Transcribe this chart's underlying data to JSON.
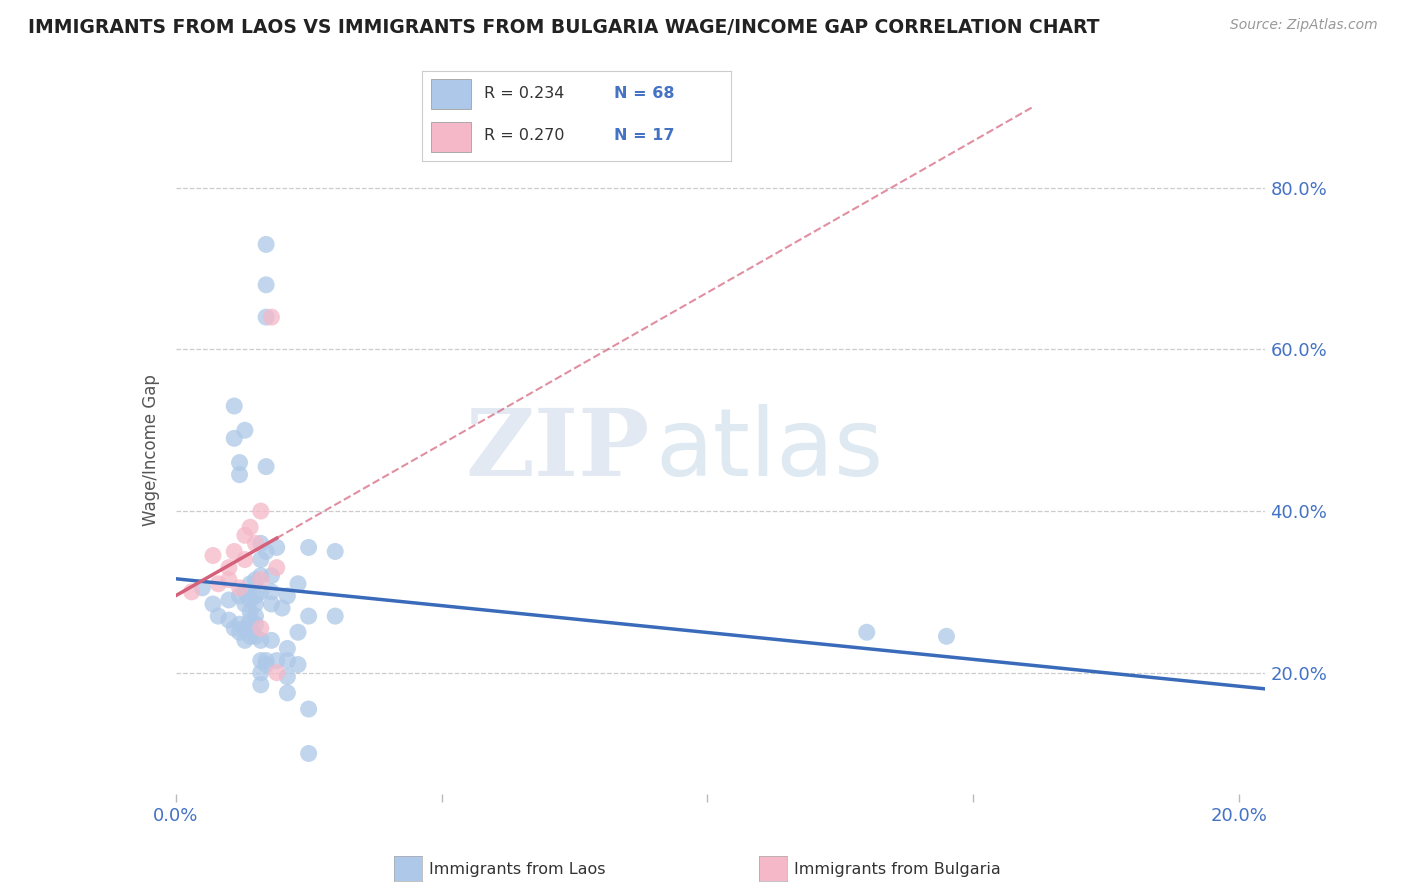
{
  "title": "IMMIGRANTS FROM LAOS VS IMMIGRANTS FROM BULGARIA WAGE/INCOME GAP CORRELATION CHART",
  "source": "Source: ZipAtlas.com",
  "ylabel": "Wage/Income Gap",
  "laos_R": 0.234,
  "laos_N": 68,
  "bulgaria_R": 0.27,
  "bulgaria_N": 17,
  "laos_color": "#adc8e8",
  "bulgaria_color": "#f5b8c8",
  "laos_line_color": "#3a6bba",
  "bulgaria_line_color": "#d4607a",
  "laos_points": [
    [
      0.005,
      0.305
    ],
    [
      0.007,
      0.285
    ],
    [
      0.008,
      0.27
    ],
    [
      0.01,
      0.29
    ],
    [
      0.01,
      0.265
    ],
    [
      0.011,
      0.53
    ],
    [
      0.011,
      0.49
    ],
    [
      0.011,
      0.255
    ],
    [
      0.012,
      0.295
    ],
    [
      0.012,
      0.46
    ],
    [
      0.012,
      0.445
    ],
    [
      0.012,
      0.26
    ],
    [
      0.012,
      0.25
    ],
    [
      0.013,
      0.3
    ],
    [
      0.013,
      0.285
    ],
    [
      0.013,
      0.5
    ],
    [
      0.013,
      0.255
    ],
    [
      0.013,
      0.24
    ],
    [
      0.014,
      0.31
    ],
    [
      0.014,
      0.29
    ],
    [
      0.014,
      0.275
    ],
    [
      0.014,
      0.265
    ],
    [
      0.014,
      0.255
    ],
    [
      0.014,
      0.245
    ],
    [
      0.015,
      0.315
    ],
    [
      0.015,
      0.295
    ],
    [
      0.015,
      0.285
    ],
    [
      0.015,
      0.27
    ],
    [
      0.015,
      0.26
    ],
    [
      0.015,
      0.245
    ],
    [
      0.016,
      0.36
    ],
    [
      0.016,
      0.34
    ],
    [
      0.016,
      0.32
    ],
    [
      0.016,
      0.3
    ],
    [
      0.016,
      0.24
    ],
    [
      0.016,
      0.215
    ],
    [
      0.016,
      0.2
    ],
    [
      0.016,
      0.185
    ],
    [
      0.017,
      0.73
    ],
    [
      0.017,
      0.68
    ],
    [
      0.017,
      0.64
    ],
    [
      0.017,
      0.455
    ],
    [
      0.017,
      0.35
    ],
    [
      0.017,
      0.215
    ],
    [
      0.017,
      0.21
    ],
    [
      0.018,
      0.32
    ],
    [
      0.018,
      0.3
    ],
    [
      0.018,
      0.285
    ],
    [
      0.018,
      0.24
    ],
    [
      0.019,
      0.355
    ],
    [
      0.019,
      0.215
    ],
    [
      0.02,
      0.28
    ],
    [
      0.021,
      0.295
    ],
    [
      0.021,
      0.23
    ],
    [
      0.021,
      0.215
    ],
    [
      0.021,
      0.195
    ],
    [
      0.021,
      0.175
    ],
    [
      0.023,
      0.31
    ],
    [
      0.023,
      0.25
    ],
    [
      0.023,
      0.21
    ],
    [
      0.025,
      0.355
    ],
    [
      0.025,
      0.27
    ],
    [
      0.025,
      0.155
    ],
    [
      0.025,
      0.1
    ],
    [
      0.03,
      0.35
    ],
    [
      0.03,
      0.27
    ],
    [
      0.13,
      0.25
    ],
    [
      0.145,
      0.245
    ]
  ],
  "bulgaria_points": [
    [
      0.003,
      0.3
    ],
    [
      0.007,
      0.345
    ],
    [
      0.008,
      0.31
    ],
    [
      0.01,
      0.33
    ],
    [
      0.01,
      0.315
    ],
    [
      0.011,
      0.35
    ],
    [
      0.012,
      0.305
    ],
    [
      0.013,
      0.37
    ],
    [
      0.013,
      0.34
    ],
    [
      0.014,
      0.38
    ],
    [
      0.015,
      0.36
    ],
    [
      0.016,
      0.4
    ],
    [
      0.016,
      0.315
    ],
    [
      0.016,
      0.255
    ],
    [
      0.018,
      0.64
    ],
    [
      0.019,
      0.33
    ],
    [
      0.019,
      0.2
    ]
  ],
  "watermark_zip": "ZIP",
  "watermark_atlas": "atlas",
  "background_color": "#ffffff",
  "xlim": [
    0.0,
    0.205
  ],
  "ylim": [
    0.05,
    0.9
  ],
  "ytick_vals": [
    0.2,
    0.4,
    0.6,
    0.8
  ],
  "ytick_labels": [
    "20.0%",
    "40.0%",
    "60.0%",
    "80.0%"
  ],
  "xtick_vals": [
    0.0,
    0.05,
    0.1,
    0.15,
    0.2
  ],
  "xtick_labels": [
    "0.0%",
    "",
    "",
    "",
    "20.0%"
  ]
}
